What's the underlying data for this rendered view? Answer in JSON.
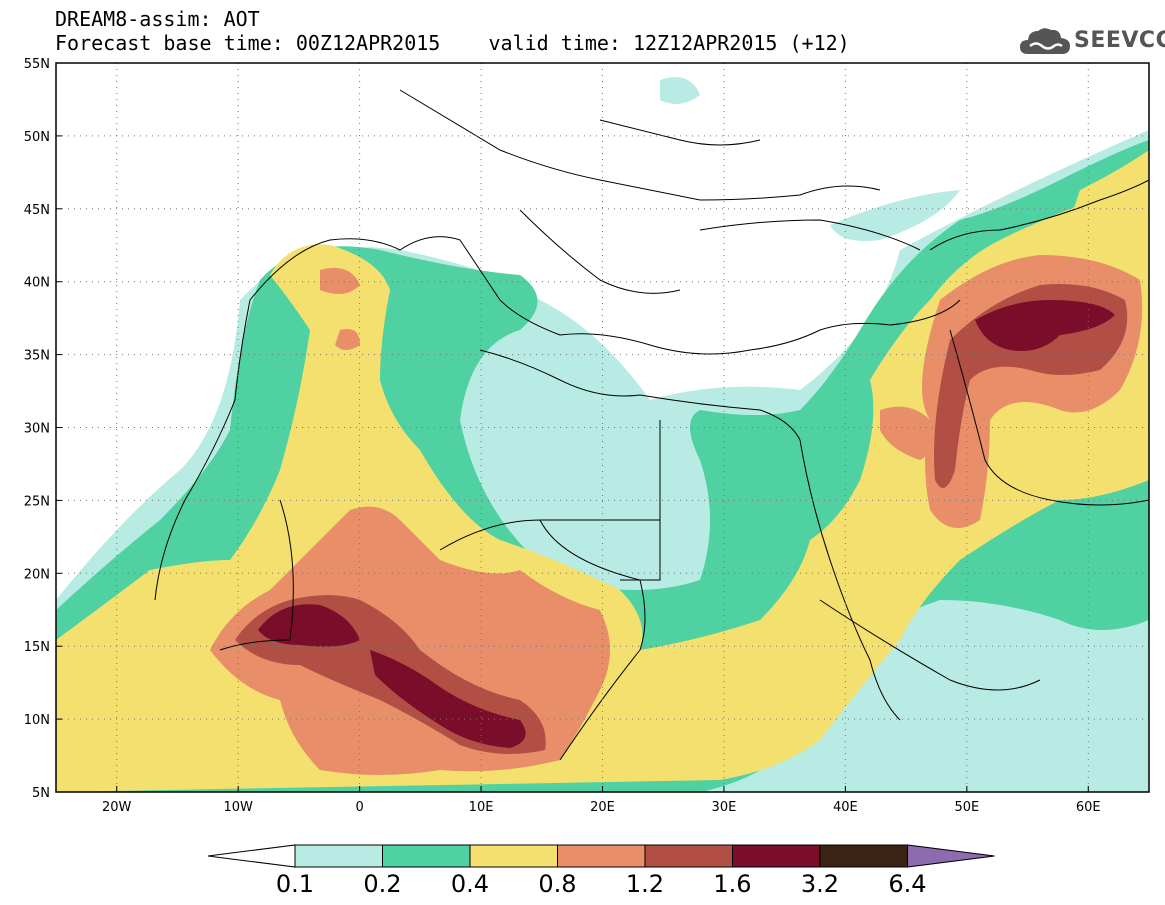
{
  "header": {
    "title_line1": "DREAM8-assim: AOT",
    "base_time": "Forecast base time: 00Z12APR2015",
    "valid_time": "valid time: 12Z12APR2015 (+12)"
  },
  "logo": {
    "text": "SEEVCCC",
    "icon": "cloud-icon",
    "color": "#555555"
  },
  "map": {
    "lon_range": [
      -25,
      65
    ],
    "lat_range": [
      5,
      55
    ],
    "lat_labels": [
      "55N",
      "50N",
      "45N",
      "40N",
      "35N",
      "30N",
      "25N",
      "20N",
      "15N",
      "10N",
      "5N"
    ],
    "lon_labels": [
      "20W",
      "10W",
      "0",
      "10E",
      "20E",
      "30E",
      "40E",
      "50E",
      "60E"
    ],
    "gridlines": "dotted"
  },
  "colorbar": {
    "levels": [
      "0.1",
      "0.2",
      "0.4",
      "0.8",
      "1.2",
      "1.6",
      "3.2",
      "6.4"
    ],
    "colors": [
      "#ffffff",
      "#b8ebe3",
      "#4fd1a2",
      "#f4e06f",
      "#e88f69",
      "#b24f45",
      "#7a0d2a",
      "#3b2315",
      "#8c6bb1"
    ]
  }
}
